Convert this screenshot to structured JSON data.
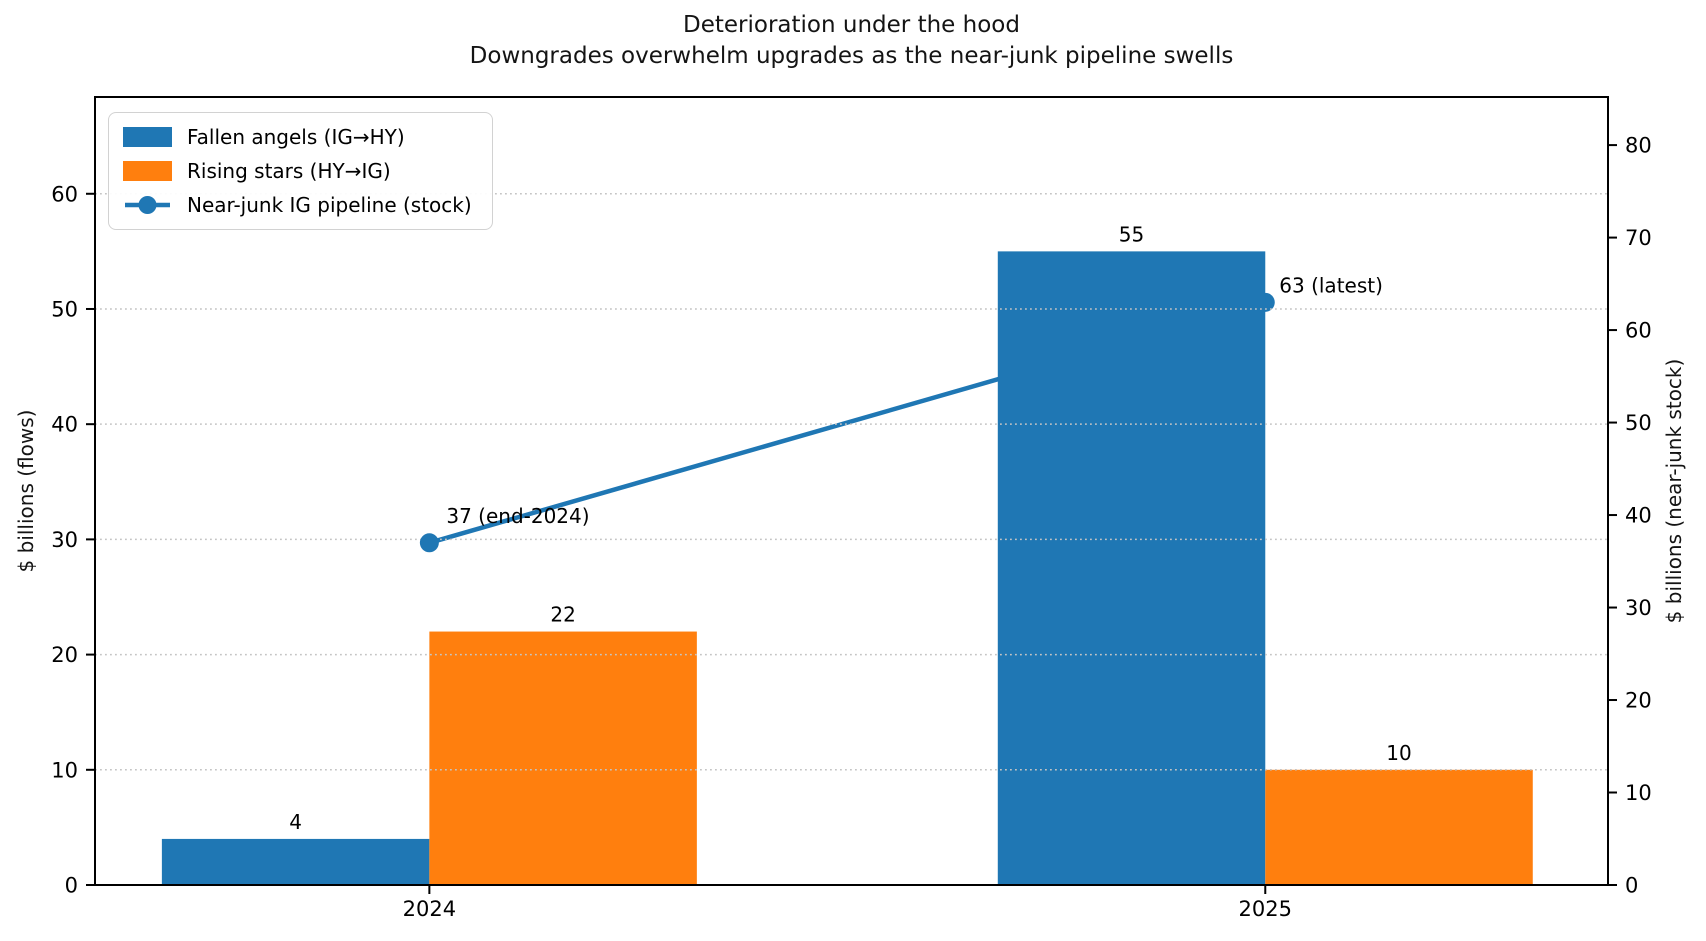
{
  "chart_data": {
    "type": "bar",
    "title": "Deterioration under the hood",
    "subtitle": "Downgrades overwhelm upgrades as the near-junk pipeline swells",
    "categories": [
      "2024",
      "2025"
    ],
    "series": [
      {
        "name": "Fallen angels (IG→HY)",
        "type": "bar",
        "axis": "left",
        "color": "#1f77b4",
        "values": [
          4,
          55
        ]
      },
      {
        "name": "Rising stars (HY→IG)",
        "type": "bar",
        "axis": "left",
        "color": "#ff7f0e",
        "values": [
          22,
          10
        ]
      },
      {
        "name": "Near-junk IG pipeline (stock)",
        "type": "line",
        "axis": "right",
        "color": "#1f77b4",
        "values": [
          37,
          63
        ],
        "point_labels": [
          "37 (end-2024)",
          "63 (latest)"
        ]
      }
    ],
    "xlabel": "",
    "ylabel_left": "$ billions (flows)",
    "ylabel_right": "$ billions (near-junk stock)",
    "ylim_left": [
      0,
      68.4
    ],
    "ylim_right": [
      0,
      85.2
    ],
    "yticks_left": [
      0,
      10,
      20,
      30,
      40,
      50,
      60
    ],
    "yticks_right": [
      0,
      10,
      20,
      30,
      40,
      50,
      60,
      70,
      80
    ],
    "grid": {
      "axis": "y",
      "which": "left-ticks",
      "style": "dotted",
      "color": "#c4c4c4"
    },
    "legend_position": "upper-left",
    "bar_width_fraction": 0.32
  }
}
